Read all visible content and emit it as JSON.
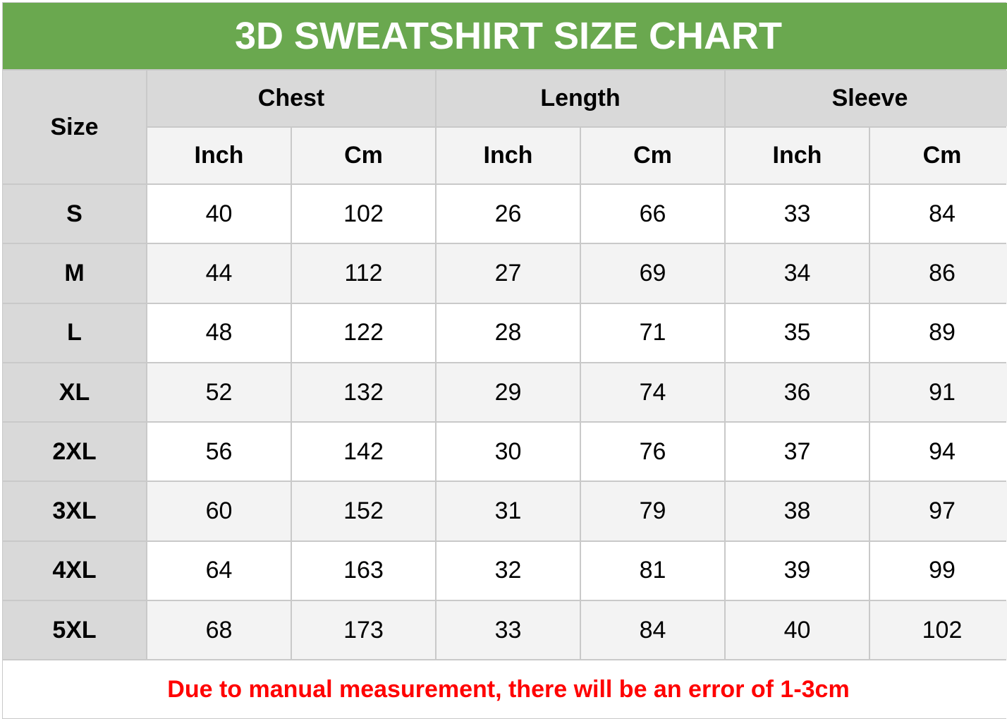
{
  "title": "3D SWEATSHIRT SIZE CHART",
  "size_header": "Size",
  "groups": [
    "Chest",
    "Length",
    "Sleeve"
  ],
  "units": [
    "Inch",
    "Cm",
    "Inch",
    "Cm",
    "Inch",
    "Cm"
  ],
  "rows": [
    {
      "size": "S",
      "values": [
        "40",
        "102",
        "26",
        "66",
        "33",
        "84"
      ]
    },
    {
      "size": "M",
      "values": [
        "44",
        "112",
        "27",
        "69",
        "34",
        "86"
      ]
    },
    {
      "size": "L",
      "values": [
        "48",
        "122",
        "28",
        "71",
        "35",
        "89"
      ]
    },
    {
      "size": "XL",
      "values": [
        "52",
        "132",
        "29",
        "74",
        "36",
        "91"
      ]
    },
    {
      "size": "2XL",
      "values": [
        "56",
        "142",
        "30",
        "76",
        "37",
        "94"
      ]
    },
    {
      "size": "3XL",
      "values": [
        "60",
        "152",
        "31",
        "79",
        "38",
        "97"
      ]
    },
    {
      "size": "4XL",
      "values": [
        "64",
        "163",
        "32",
        "81",
        "39",
        "99"
      ]
    },
    {
      "size": "5XL",
      "values": [
        "68",
        "173",
        "33",
        "84",
        "40",
        "102"
      ]
    }
  ],
  "note": "Due to manual measurement, there will be an error of 1-3cm",
  "colors": {
    "title_bg": "#6aa84f",
    "header_bg": "#d9d9d9",
    "note_text": "#ff0000"
  }
}
